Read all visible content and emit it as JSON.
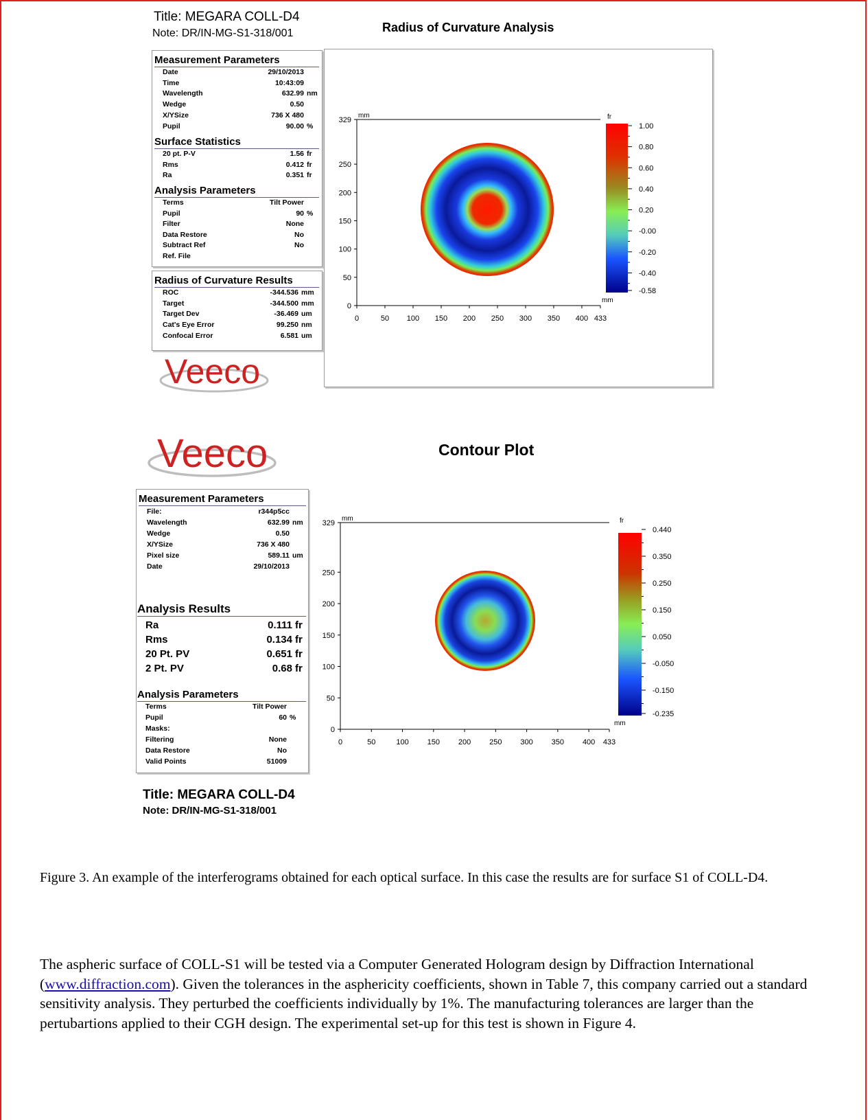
{
  "fig1": {
    "title": "Title:  MEGARA COLL-D4",
    "note": "Note:  DR/IN-MG-S1-318/001",
    "chart_title": "Radius of Curvature Analysis",
    "sections": {
      "measurement": {
        "title": "Measurement Parameters",
        "rows": [
          {
            "label": "Date",
            "value": "29/10/2013",
            "unit": ""
          },
          {
            "label": "Time",
            "value": "10:43:09",
            "unit": ""
          },
          {
            "label": "Wavelength",
            "value": "632.99",
            "unit": "nm"
          },
          {
            "label": "Wedge",
            "value": "0.50",
            "unit": ""
          },
          {
            "label": "X/YSize",
            "value": "736 X 480",
            "unit": ""
          },
          {
            "label": "Pupil",
            "value": "90.00",
            "unit": "%"
          }
        ]
      },
      "surface": {
        "title": "Surface Statistics",
        "rows": [
          {
            "label": "20 pt. P-V",
            "value": "1.56",
            "unit": "fr"
          },
          {
            "label": "Rms",
            "value": "0.412",
            "unit": "fr"
          },
          {
            "label": "Ra",
            "value": "0.351",
            "unit": "fr"
          }
        ]
      },
      "analysis": {
        "title": "Analysis Parameters",
        "rows": [
          {
            "label": "Terms",
            "value": "Tilt Power",
            "unit": ""
          },
          {
            "label": "Pupil",
            "value": "90",
            "unit": "%"
          },
          {
            "label": "Filter",
            "value": "None",
            "unit": ""
          },
          {
            "label": "Data Restore",
            "value": "No",
            "unit": ""
          },
          {
            "label": "Subtract Ref",
            "value": "No",
            "unit": ""
          },
          {
            "label": "Ref. File",
            "value": "",
            "unit": ""
          }
        ]
      },
      "roc": {
        "title": "Radius of Curvature Results",
        "rows": [
          {
            "label": "ROC",
            "value": "-344.536",
            "unit": "mm"
          },
          {
            "label": "Target",
            "value": "-344.500",
            "unit": "mm"
          },
          {
            "label": "Target Dev",
            "value": "-36.469",
            "unit": "um"
          },
          {
            "label": "Cat's Eye Error",
            "value": "99.250",
            "unit": "nm"
          },
          {
            "label": "Confocal Error",
            "value": "6.581",
            "unit": "um"
          }
        ]
      }
    },
    "plot": {
      "y_unit": "mm",
      "x_unit": "mm",
      "scale_unit": "fr",
      "y_ticks": [
        "329",
        "250",
        "200",
        "150",
        "100",
        "50",
        "0"
      ],
      "x_ticks": [
        "0",
        "50",
        "100",
        "150",
        "200",
        "250",
        "300",
        "350",
        "400",
        "433"
      ],
      "scale_ticks": [
        "1.00",
        "0.80",
        "0.60",
        "0.40",
        "0.20",
        "-0.00",
        "-0.20",
        "-0.40",
        "-0.58"
      ]
    }
  },
  "fig2": {
    "logo_text": "Veeco",
    "chart_title": "Contour Plot",
    "sections": {
      "measurement": {
        "title": "Measurement Parameters",
        "rows": [
          {
            "label": "File:",
            "value": "r344p5cc",
            "unit": ""
          },
          {
            "label": "Wavelength",
            "value": "632.99",
            "unit": "nm"
          },
          {
            "label": "Wedge",
            "value": "0.50",
            "unit": ""
          },
          {
            "label": "X/YSize",
            "value": "736 X 480",
            "unit": ""
          },
          {
            "label": "Pixel size",
            "value": "589.11",
            "unit": "um"
          },
          {
            "label": "Date",
            "value": "29/10/2013",
            "unit": ""
          }
        ]
      },
      "results": {
        "title": "Analysis Results",
        "rows": [
          {
            "label": "Ra",
            "value": "0.111",
            "unit": "fr"
          },
          {
            "label": "Rms",
            "value": "0.134",
            "unit": "fr"
          },
          {
            "label": "20 Pt. PV",
            "value": "0.651",
            "unit": "fr"
          },
          {
            "label": "2 Pt. PV",
            "value": "0.68",
            "unit": "fr"
          }
        ]
      },
      "analysis": {
        "title": "Analysis Parameters",
        "rows": [
          {
            "label": "Terms",
            "value": "Tilt Power",
            "unit": ""
          },
          {
            "label": "Pupil",
            "value": "60",
            "unit": "%"
          },
          {
            "label": "Masks:",
            "value": "",
            "unit": ""
          },
          {
            "label": "Filtering",
            "value": "None",
            "unit": ""
          },
          {
            "label": "Data Restore",
            "value": "No",
            "unit": ""
          },
          {
            "label": "Valid Points",
            "value": "51009",
            "unit": ""
          }
        ]
      }
    },
    "plot": {
      "y_unit": "mm",
      "x_unit": "mm",
      "scale_unit": "fr",
      "y_ticks": [
        "329",
        "250",
        "200",
        "150",
        "100",
        "50",
        "0"
      ],
      "x_ticks": [
        "0",
        "50",
        "100",
        "150",
        "200",
        "250",
        "300",
        "350",
        "400",
        "433"
      ],
      "scale_ticks": [
        "0.440",
        "0.350",
        "0.250",
        "0.150",
        "0.050",
        "-0.050",
        "-0.150",
        "-0.235"
      ]
    },
    "title": "Title:  MEGARA COLL-D4",
    "note": "Note:  DR/IN-MG-S1-318/001"
  },
  "logo1_text": "Veeco",
  "caption": "Figure 3. An example of the interferograms obtained for each optical surface. In this case the results are for  surface S1  of COLL-D4.",
  "paragraph": {
    "part1": "The aspheric surface of  COLL-S1 will be tested via a Computer Generated Hologram design by Diffraction International (",
    "link": "www.diffraction.com",
    "part2": ").  Given the tolerances in the asphericity coefficients,  shown in Table 7,  this company carried out a standard sensitivity analysis. They perturbed the coefficients individually by 1%.  The manufacturing tolerances are larger than the pertubartions applied to their  CGH design.  The experimental set-up for this test is shown in Figure 4."
  },
  "colors": {
    "border": "#e02020",
    "link": "#1a0dab",
    "logo": "#cc2222"
  }
}
